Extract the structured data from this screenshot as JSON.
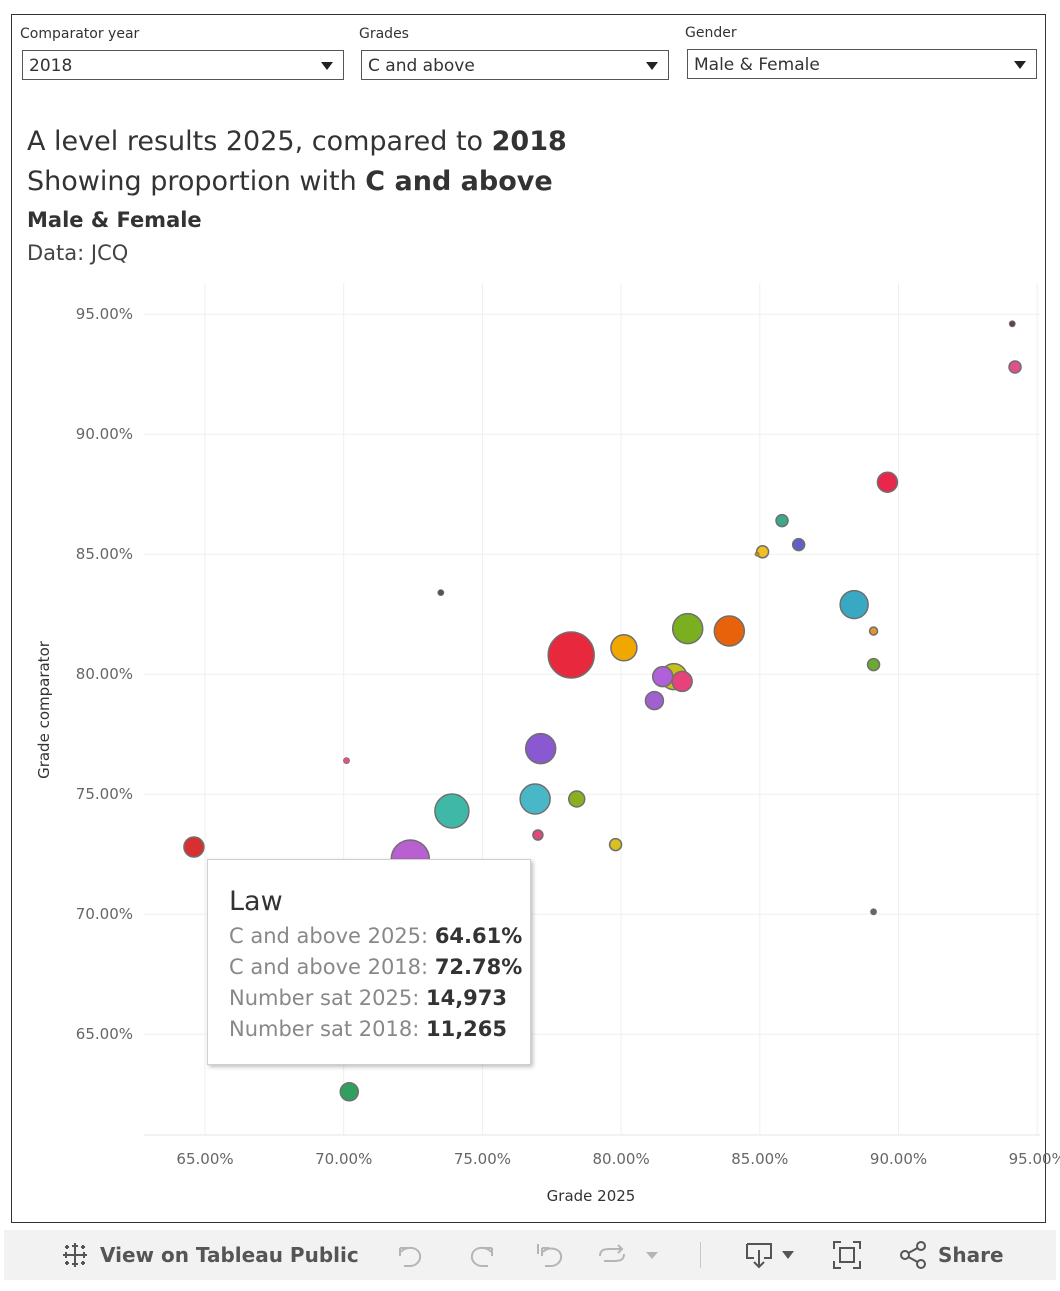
{
  "filters": [
    {
      "label": "Comparator year",
      "value": "2018"
    },
    {
      "label": "Grades",
      "value": "C and above"
    },
    {
      "label": "Gender",
      "value": "Male & Female"
    }
  ],
  "title": {
    "line1_prefix": "A level results 2025, compared to ",
    "line1_bold": "2018",
    "line2_prefix": "Showing proportion with ",
    "line2_bold": "C and above",
    "subtitle": "Male & Female",
    "source": "Data: JCQ"
  },
  "tooltip": {
    "title": "Law",
    "rows": [
      {
        "key": "C and above 2025:",
        "value": "64.61%"
      },
      {
        "key": "C and above 2018:",
        "value": "72.78%"
      },
      {
        "key": "Number sat 2025:",
        "value": "14,973"
      },
      {
        "key": "Number sat 2018:",
        "value": "11,265"
      }
    ]
  },
  "toolbar": {
    "view_label": "View on Tableau Public",
    "share_label": "Share"
  },
  "chart_data": {
    "type": "scatter",
    "title": "",
    "xlabel": "Grade 2025",
    "ylabel": "Grade comparator",
    "xlim": [
      62.8,
      95.1
    ],
    "ylim": [
      60.8,
      96.3
    ],
    "xticks": [
      65,
      70,
      75,
      80,
      85,
      90,
      95
    ],
    "yticks": [
      65,
      70,
      75,
      80,
      85,
      90,
      95
    ],
    "xtick_labels": [
      "65.00%",
      "70.00%",
      "75.00%",
      "80.00%",
      "85.00%",
      "90.00%",
      "95.00%"
    ],
    "ytick_labels": [
      "65.00%",
      "70.00%",
      "75.00%",
      "80.00%",
      "85.00%",
      "90.00%",
      "95.00%"
    ],
    "grid": true,
    "points": [
      {
        "x": 94.1,
        "y": 94.6,
        "size": 3,
        "color": "#6b3e4e"
      },
      {
        "x": 94.2,
        "y": 92.8,
        "size": 6,
        "color": "#e0508a"
      },
      {
        "x": 89.6,
        "y": 88.0,
        "size": 10,
        "color": "#e8274b"
      },
      {
        "x": 85.8,
        "y": 86.4,
        "size": 6,
        "color": "#3aaa8a"
      },
      {
        "x": 86.4,
        "y": 85.4,
        "size": 6,
        "color": "#6060c8"
      },
      {
        "x": 85.1,
        "y": 85.1,
        "size": 6,
        "color": "#f0c020"
      },
      {
        "x": 84.9,
        "y": 85.0,
        "size": 2,
        "color": "#cc8800"
      },
      {
        "x": 73.5,
        "y": 83.4,
        "size": 3,
        "color": "#555555"
      },
      {
        "x": 88.4,
        "y": 82.9,
        "size": 14,
        "color": "#39a9c3"
      },
      {
        "x": 89.1,
        "y": 81.8,
        "size": 4,
        "color": "#e0962a"
      },
      {
        "x": 82.4,
        "y": 81.9,
        "size": 15,
        "color": "#7ab020"
      },
      {
        "x": 83.9,
        "y": 81.8,
        "size": 15,
        "color": "#e8620c"
      },
      {
        "x": 78.2,
        "y": 80.8,
        "size": 23,
        "color": "#e8283c"
      },
      {
        "x": 80.1,
        "y": 81.1,
        "size": 13,
        "color": "#f0a800"
      },
      {
        "x": 89.1,
        "y": 80.4,
        "size": 6,
        "color": "#6aab30"
      },
      {
        "x": 81.5,
        "y": 79.9,
        "size": 10,
        "color": "#b060d8"
      },
      {
        "x": 82.2,
        "y": 79.7,
        "size": 10,
        "color": "#e8427c"
      },
      {
        "x": 81.9,
        "y": 79.9,
        "size": 13,
        "color": "#c8c018"
      },
      {
        "x": 81.2,
        "y": 78.9,
        "size": 9,
        "color": "#a060d0"
      },
      {
        "x": 77.1,
        "y": 76.9,
        "size": 15,
        "color": "#8a58d0"
      },
      {
        "x": 70.1,
        "y": 76.4,
        "size": 3,
        "color": "#e8508a"
      },
      {
        "x": 76.9,
        "y": 74.8,
        "size": 15,
        "color": "#48b8c8"
      },
      {
        "x": 78.4,
        "y": 74.8,
        "size": 8,
        "color": "#88b020"
      },
      {
        "x": 73.9,
        "y": 74.3,
        "size": 17,
        "color": "#40b8a8"
      },
      {
        "x": 77.0,
        "y": 73.3,
        "size": 5,
        "color": "#e04880"
      },
      {
        "x": 79.8,
        "y": 72.9,
        "size": 6,
        "color": "#d8c020"
      },
      {
        "x": 64.6,
        "y": 72.8,
        "size": 10,
        "color": "#d83030"
      },
      {
        "x": 72.4,
        "y": 72.3,
        "size": 19,
        "color": "#b860d0"
      },
      {
        "x": 89.1,
        "y": 70.1,
        "size": 3,
        "color": "#666666"
      },
      {
        "x": 70.2,
        "y": 62.6,
        "size": 9,
        "color": "#30a060"
      }
    ]
  }
}
